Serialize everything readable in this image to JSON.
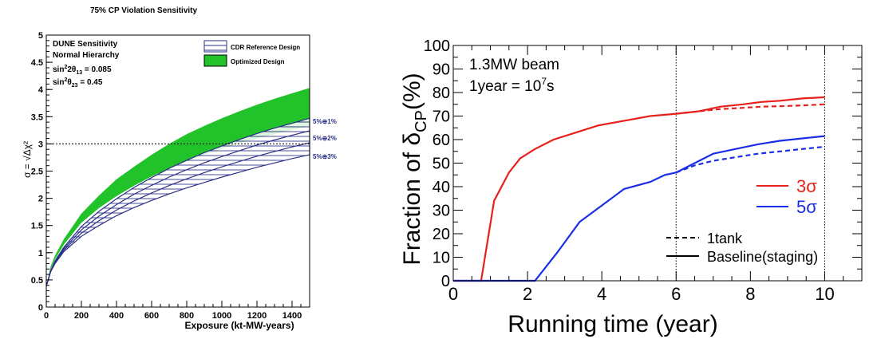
{
  "chart_data": [
    {
      "type": "area",
      "title": "75% CP Violation Sensitivity",
      "xlabel": "Exposure (kt-MW-years)",
      "ylabel": "σ = √Δχ²",
      "xlim": [
        0,
        1500
      ],
      "ylim": [
        0,
        5
      ],
      "xticks": [
        "0",
        "200",
        "400",
        "600",
        "800",
        "1000",
        "1200",
        "1400"
      ],
      "yticks": [
        "0",
        "0.5",
        "1",
        "1.5",
        "2",
        "2.5",
        "3",
        "3.5",
        "4",
        "4.5",
        "5"
      ],
      "info_lines": [
        "DUNE Sensitivity",
        "Normal Hierarchy"
      ],
      "param1": {
        "prefix": "sin",
        "sup": "2",
        "mid": "2θ",
        "sub": "13",
        "value": " = 0.085"
      },
      "param2": {
        "prefix": "sin",
        "sup": "2",
        "mid": "θ",
        "sub": "23",
        "value": " = 0.45"
      },
      "legend": {
        "hatched": "CDR Reference Design",
        "filled": "Optimized Design"
      },
      "reference_line": 3,
      "band_labels": [
        "5%⊕1%",
        "5%⊕2%",
        "5%⊕3%"
      ],
      "x": [
        0,
        25,
        50,
        100,
        200,
        300,
        400,
        500,
        600,
        700,
        800,
        900,
        1000,
        1100,
        1200,
        1300,
        1400,
        1500
      ],
      "series": [
        {
          "name": "Optimized Design",
          "upper": [
            0.38,
            0.75,
            0.95,
            1.25,
            1.72,
            2.05,
            2.35,
            2.58,
            2.8,
            3.0,
            3.18,
            3.33,
            3.47,
            3.6,
            3.72,
            3.83,
            3.93,
            4.03
          ],
          "lower": [
            0.38,
            0.7,
            0.88,
            1.15,
            1.55,
            1.82,
            2.04,
            2.23,
            2.4,
            2.55,
            2.68,
            2.8,
            2.91,
            3.01,
            3.1,
            3.18,
            3.26,
            3.33
          ]
        },
        {
          "name": "CDR Reference Design",
          "upper": [
            0.38,
            0.67,
            0.85,
            1.1,
            1.48,
            1.76,
            1.99,
            2.2,
            2.38,
            2.55,
            2.7,
            2.84,
            2.96,
            3.08,
            3.19,
            3.29,
            3.38,
            3.47
          ],
          "lower": [
            0.38,
            0.65,
            0.8,
            1.02,
            1.3,
            1.5,
            1.68,
            1.83,
            1.96,
            2.08,
            2.19,
            2.29,
            2.39,
            2.48,
            2.57,
            2.65,
            2.73,
            2.8
          ]
        }
      ]
    },
    {
      "type": "line",
      "xlabel": "Running time (year)",
      "ylabel_prefix": "Fraction of δ",
      "ylabel_sub": "CP",
      "ylabel_suffix": "(%)",
      "xlim": [
        0,
        11
      ],
      "ylim": [
        0,
        100
      ],
      "xticks": [
        "0",
        "2",
        "4",
        "6",
        "8",
        "10"
      ],
      "yticks": [
        "0",
        "10",
        "20",
        "30",
        "40",
        "50",
        "60",
        "70",
        "80",
        "90",
        "100"
      ],
      "beam_text": "1.3MW beam",
      "year_text_prefix": "1year = 10",
      "year_text_exp": "7",
      "year_text_suffix": "s",
      "vlines": [
        6,
        10
      ],
      "legend": {
        "sig3": "3σ",
        "sig5": "5σ",
        "dashed": "1tank",
        "solid": "Baseline(staging)"
      },
      "colors": {
        "sig3": "#e8201c",
        "sig5": "#1a2ee8"
      },
      "series": [
        {
          "name": "3σ",
          "style": "solid",
          "x": [
            0,
            0.75,
            1.1,
            1.5,
            1.8,
            2.2,
            2.7,
            3.3,
            3.9,
            4.6,
            5.3,
            6,
            6.6,
            7.2,
            7.8,
            8.3,
            8.8,
            9.4,
            10
          ],
          "y": [
            0,
            0,
            34,
            46,
            52,
            56,
            60,
            63,
            66,
            68,
            70,
            71,
            72,
            74,
            75,
            76,
            76.5,
            77.5,
            78
          ]
        },
        {
          "name": "3σ",
          "style": "dashed",
          "x": [
            6,
            6.6,
            7.2,
            7.8,
            8.3,
            8.8,
            9.4,
            10
          ],
          "y": [
            71,
            72,
            73,
            73.5,
            74,
            74.2,
            74.5,
            75
          ]
        },
        {
          "name": "5σ",
          "style": "solid",
          "x": [
            0,
            2.2,
            2.8,
            3.4,
            4,
            4.6,
            5.3,
            5.7,
            6,
            6.5,
            7,
            7.6,
            8.2,
            8.8,
            9.4,
            10
          ],
          "y": [
            0,
            0,
            12,
            25,
            32,
            39,
            42,
            45,
            46,
            50,
            54,
            56,
            58,
            59.5,
            60.5,
            61.5
          ]
        },
        {
          "name": "5σ",
          "style": "dashed",
          "x": [
            6,
            6.5,
            7,
            7.6,
            8.2,
            8.8,
            9.4,
            10
          ],
          "y": [
            46,
            49,
            51,
            52.5,
            54,
            55,
            56,
            57
          ]
        }
      ]
    }
  ]
}
